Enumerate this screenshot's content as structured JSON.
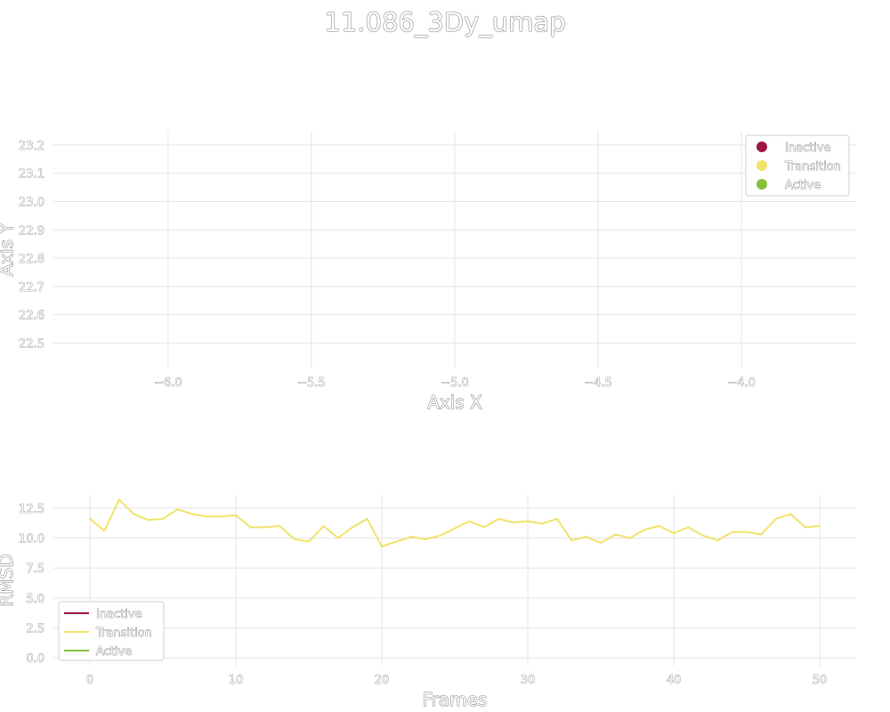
{
  "title": "11.086_3Dy_umap",
  "colors": {
    "inactive": "#9e1346",
    "transition": "#f0e36a",
    "active": "#86c03c",
    "grid": "#e4e4e4"
  },
  "chart_data": [
    {
      "type": "scatter",
      "xlabel": "Axis X",
      "ylabel": "Axis Y",
      "xlim": [
        -6.4,
        -3.6
      ],
      "ylim": [
        22.41,
        23.25
      ],
      "x_ticks": [
        -6.0,
        -5.5,
        -5.0,
        -4.5,
        -4.0
      ],
      "x_tick_labels": [
        "−6.0",
        "−5.5",
        "−5.0",
        "−4.5",
        "−4.0"
      ],
      "y_ticks": [
        22.5,
        22.6,
        22.7,
        22.8,
        22.9,
        23.0,
        23.1,
        23.2
      ],
      "y_tick_labels": [
        "22.5",
        "22.6",
        "22.7",
        "22.8",
        "22.9",
        "23.0",
        "23.1",
        "23.2"
      ],
      "grid": true,
      "legend": {
        "placement": "top-right",
        "entries": [
          {
            "label": "Inactive",
            "color": "#9e1346"
          },
          {
            "label": "Transition",
            "color": "#f0e36a"
          },
          {
            "label": "Active",
            "color": "#86c03c"
          }
        ]
      },
      "series": []
    },
    {
      "type": "line",
      "xlabel": "Frames",
      "ylabel": "RMSD",
      "xlim": [
        -2.5,
        52.5
      ],
      "ylim": [
        -0.65,
        13.6
      ],
      "x_ticks": [
        0,
        10,
        20,
        30,
        40,
        50
      ],
      "x_tick_labels": [
        "0",
        "10",
        "20",
        "30",
        "40",
        "50"
      ],
      "y_ticks": [
        0.0,
        2.5,
        5.0,
        7.5,
        10.0,
        12.5
      ],
      "y_tick_labels": [
        "0.0",
        "2.5",
        "5.0",
        "7.5",
        "10.0",
        "12.5"
      ],
      "grid": true,
      "legend": {
        "placement": "bottom-left",
        "entries": [
          {
            "label": "Inactive",
            "color": "#9e1346"
          },
          {
            "label": "Transition",
            "color": "#f0e36a"
          },
          {
            "label": "Active",
            "color": "#86c03c"
          }
        ]
      },
      "series": [
        {
          "name": "Transition",
          "color": "#f0e36a",
          "x": [
            0,
            1,
            2,
            3,
            4,
            5,
            6,
            7,
            8,
            9,
            10,
            11,
            12,
            13,
            14,
            15,
            16,
            17,
            18,
            19,
            20,
            21,
            22,
            23,
            24,
            25,
            26,
            27,
            28,
            29,
            30,
            31,
            32,
            33,
            34,
            35,
            36,
            37,
            38,
            39,
            40,
            41,
            42,
            43,
            44,
            45,
            46,
            47,
            48,
            49,
            50
          ],
          "y": [
            11.6,
            10.6,
            13.2,
            12.0,
            11.5,
            11.6,
            12.4,
            12.0,
            11.8,
            11.8,
            11.9,
            10.9,
            10.9,
            11.0,
            9.9,
            9.7,
            11.0,
            10.0,
            10.9,
            11.6,
            9.3,
            9.7,
            10.1,
            9.9,
            10.2,
            10.8,
            11.4,
            10.9,
            11.6,
            11.3,
            11.4,
            11.2,
            11.6,
            9.8,
            10.1,
            9.6,
            10.3,
            10.0,
            10.7,
            11.0,
            10.4,
            10.9,
            10.2,
            9.8,
            10.5,
            10.5,
            10.3,
            11.6,
            12.0,
            10.9,
            11.0
          ]
        }
      ]
    }
  ]
}
